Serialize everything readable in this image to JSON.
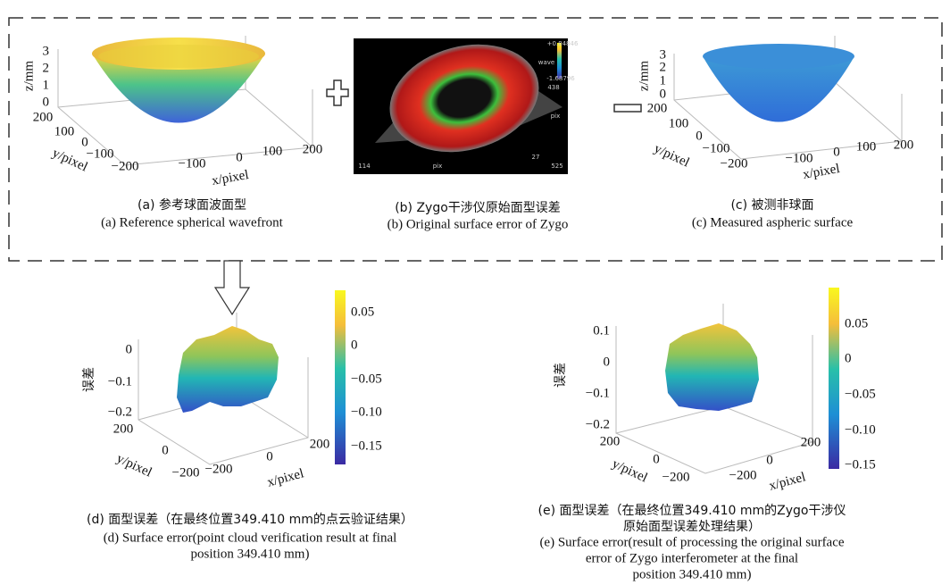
{
  "panels": [
    {
      "caption_cn": "(a) 参考球面波面型",
      "caption_en": "(a) Reference spherical wavefront",
      "z_label": "z/mm",
      "z_ticks": [
        "3",
        "2",
        "1",
        "0"
      ],
      "y_label": "y/pixel",
      "y_ticks": [
        "200",
        "100",
        "0",
        "−100",
        "−200"
      ],
      "x_label": "x/pixel",
      "x_ticks": [
        "−100",
        "0",
        "100",
        "200"
      ]
    },
    {
      "caption_cn": "(b) Zygo干涉仪原始面型误差",
      "caption_en": "(b) Original surface error of Zygo",
      "image_texts": [
        "+0.84846",
        "wave",
        "-1.68796",
        "438",
        "pix",
        "114",
        "pix",
        "525",
        "27"
      ]
    },
    {
      "caption_cn": "(c) 被测非球面",
      "caption_en": "(c) Measured aspheric surface",
      "z_label": "z/mm",
      "z_ticks": [
        "3",
        "2",
        "1",
        "0"
      ],
      "y_label": "y/pixel",
      "y_ticks": [
        "200",
        "100",
        "0",
        "−100",
        "−200"
      ],
      "x_label": "x/pixel",
      "x_ticks": [
        "−100",
        "0",
        "100",
        "200"
      ]
    },
    {
      "caption_cn": "(d) 面型误差（在最终位置349.410 mm的点云验证结果）",
      "caption_en": [
        "(d) Surface error(point cloud verification result at final",
        "position 349.410 mm)"
      ],
      "z_label": "误差",
      "z_ticks": [
        "0",
        "−0.1",
        "−0.2"
      ],
      "y_label": "y/pixel",
      "y_ticks": [
        "200",
        "0",
        "−200"
      ],
      "x_label": "x/pixel",
      "x_ticks": [
        "−200",
        "0",
        "200"
      ],
      "colorbar_ticks": [
        "0.05",
        "0",
        "−0.05",
        "−0.10",
        "−0.15"
      ]
    },
    {
      "caption_cn": [
        "(e) 面型误差（在最终位置349.410 mm的Zygo干涉仪",
        "原始面型误差处理结果）"
      ],
      "caption_en": [
        "(e) Surface error(result of processing the original surface",
        "error of Zygo interferometer at the final",
        "position 349.410 mm)"
      ],
      "z_label": "误差",
      "z_ticks": [
        "0.1",
        "0",
        "−0.1",
        "−0.2"
      ],
      "y_label": "y/pixel",
      "y_ticks": [
        "200",
        "0",
        "−200"
      ],
      "x_label": "x/pixel",
      "x_ticks": [
        "−200",
        "0",
        "200"
      ],
      "colorbar_ticks": [
        "0.05",
        "0",
        "−0.05",
        "−0.10",
        "−0.15"
      ]
    }
  ]
}
